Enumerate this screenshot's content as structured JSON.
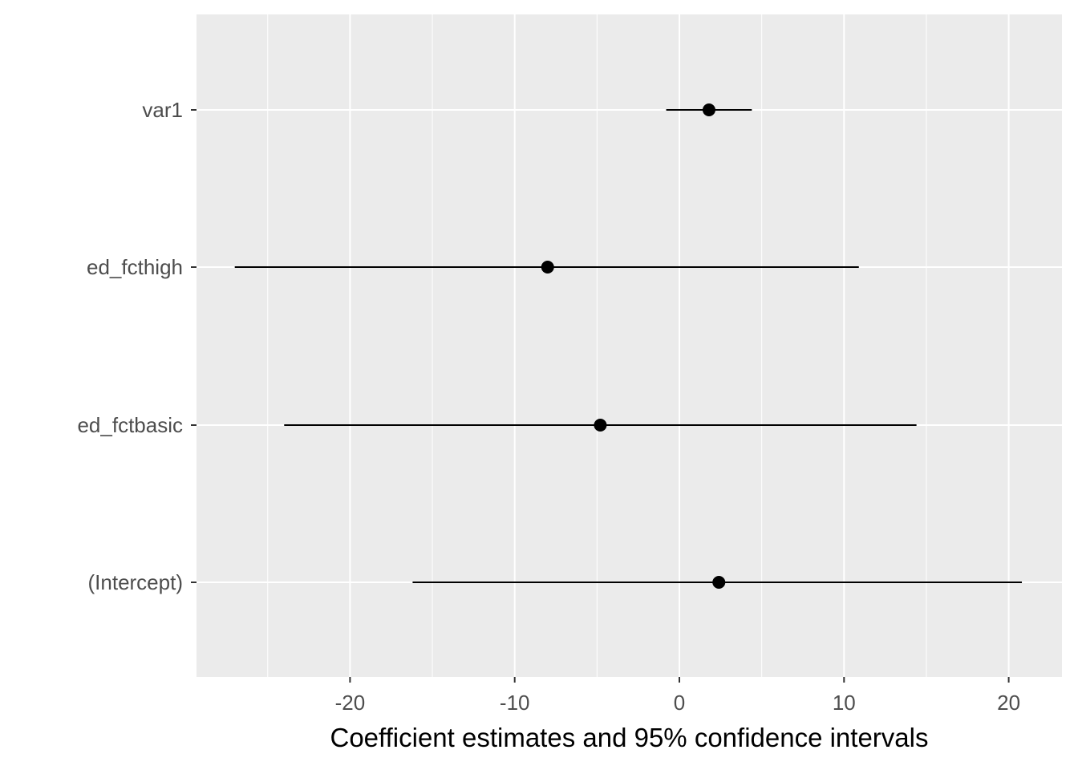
{
  "chart_data": {
    "type": "coefficient-plot",
    "xlabel": "Coefficient estimates and 95% confidence intervals",
    "ylabel": "",
    "xlim": [
      -29.5,
      23.2
    ],
    "x_ticks": [
      -20,
      -10,
      0,
      10,
      20
    ],
    "x_minor_ticks": [
      -25,
      -15,
      -5,
      5,
      15
    ],
    "categories": [
      "var1",
      "ed_fcthigh",
      "ed_fctbasic",
      "(Intercept)"
    ],
    "estimates": [
      1.8,
      -8.0,
      -4.8,
      2.4
    ],
    "ci_lower": [
      -0.8,
      -27.0,
      -24.0,
      -16.2
    ],
    "ci_upper": [
      4.4,
      10.9,
      14.4,
      20.8
    ],
    "grid": true,
    "legend": "none",
    "colors": {
      "panel": "#ebebeb",
      "grid": "#ffffff",
      "mark": "#000000"
    }
  }
}
